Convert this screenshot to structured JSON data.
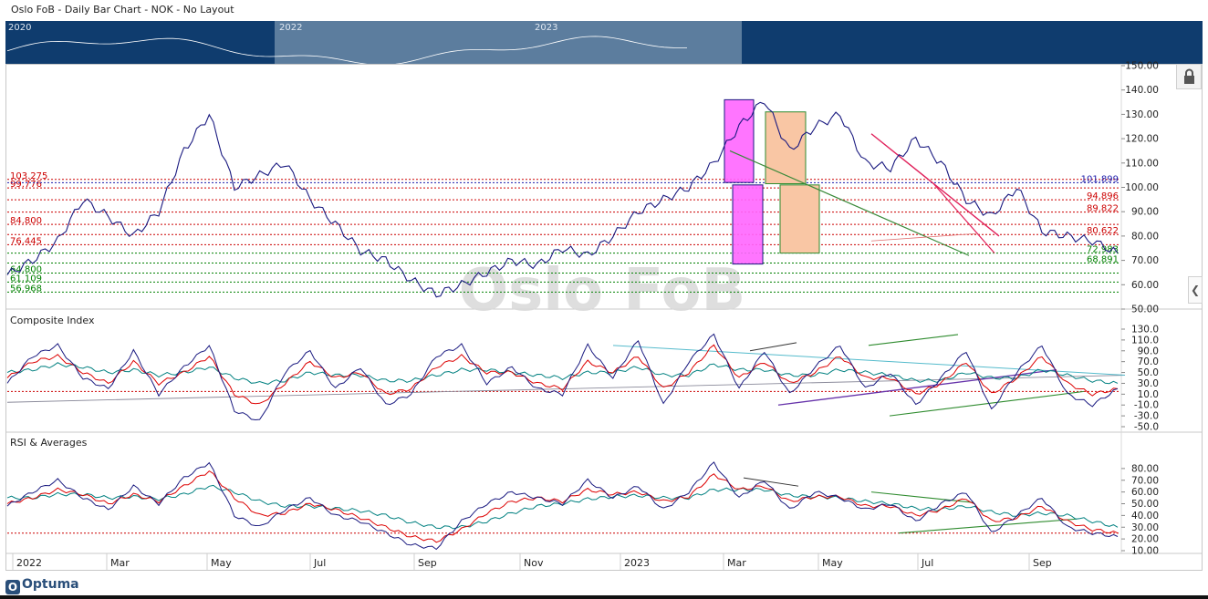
{
  "header": {
    "title": "Oslo FoB - Daily Bar Chart - NOK - No Layout"
  },
  "navigator": {
    "years": [
      "2020",
      "2022",
      "2023"
    ]
  },
  "watermark": "Oslo FoB",
  "brand": "Optuma",
  "icons": {
    "lock": "lock-icon",
    "collapse": "chevron-left-icon"
  },
  "chart_data": [
    {
      "type": "line",
      "panel": "price",
      "title": "",
      "x_labels": [
        "2022",
        "Mar",
        "May",
        "Jul",
        "Sep",
        "Nov",
        "2023",
        "Mar",
        "May",
        "Jul",
        "Sep"
      ],
      "ylim": [
        50,
        150
      ],
      "y_ticks": [
        "150.00",
        "140.00",
        "130.00",
        "120.00",
        "110.00",
        "100.00",
        "90.00",
        "80.00",
        "70.00",
        "60.00",
        "50.00"
      ],
      "series": [
        {
          "values": [
            64,
            70,
            78,
            95,
            88,
            80,
            90,
            115,
            130,
            100,
            105,
            110,
            95,
            85,
            74,
            70,
            62,
            56,
            60,
            65,
            70,
            68,
            75,
            72,
            80,
            90,
            95,
            100,
            110,
            125,
            136,
            115,
            125,
            130,
            110,
            108,
            120,
            110,
            95,
            88,
            100,
            82,
            80,
            78,
            73
          ]
        }
      ],
      "levels": [
        {
          "value": 103.275,
          "label": "103.275",
          "color": "#cc0000",
          "side": "left"
        },
        {
          "value": 99.776,
          "label": "99.776",
          "color": "#cc0000",
          "side": "left"
        },
        {
          "value": 84.8,
          "label": "84.800",
          "color": "#cc0000",
          "side": "left"
        },
        {
          "value": 76.445,
          "label": "76.445",
          "color": "#cc0000",
          "side": "left"
        },
        {
          "value": 64.8,
          "label": "64.800",
          "color": "#008000",
          "side": "left"
        },
        {
          "value": 61.109,
          "label": "61.109",
          "color": "#008000",
          "side": "left"
        },
        {
          "value": 56.968,
          "label": "56.968",
          "color": "#008000",
          "side": "left"
        },
        {
          "value": 101.899,
          "label": "101.899",
          "color": "#1a1aaa",
          "side": "right"
        },
        {
          "value": 94.896,
          "label": "94.896",
          "color": "#cc0000",
          "side": "right"
        },
        {
          "value": 89.822,
          "label": "89.822",
          "color": "#cc0000",
          "side": "right"
        },
        {
          "value": 80.622,
          "label": "80.622",
          "color": "#cc0000",
          "side": "right"
        },
        {
          "value": 72.983,
          "label": "72.983",
          "color": "#008000",
          "side": "right"
        },
        {
          "value": 68.891,
          "label": "68.891",
          "color": "#008000",
          "side": "right"
        }
      ],
      "colors": {
        "price": "#1a1a80",
        "magenta_box": "#ff66ff",
        "peach_box": "#f9c6a4"
      }
    },
    {
      "type": "line",
      "panel": "composite",
      "title": "Composite Index",
      "ylim": [
        -50,
        130
      ],
      "y_ticks": [
        "130.0",
        "110.0",
        "90.0",
        "70.0",
        "50.0",
        "30.0",
        "10.0",
        "-10.0",
        "-30.0",
        "-50.0"
      ],
      "series": [
        {
          "color": "#1a1a80",
          "values": [
            30,
            80,
            100,
            40,
            20,
            90,
            10,
            60,
            100,
            -20,
            -40,
            50,
            90,
            20,
            60,
            -10,
            10,
            80,
            100,
            30,
            60,
            20,
            10,
            100,
            40,
            110,
            -10,
            70,
            120,
            20,
            90,
            10,
            60,
            100,
            20,
            50,
            -10,
            40,
            90,
            -20,
            50,
            100,
            10,
            -10,
            20
          ]
        },
        {
          "color": "#dd0000",
          "values": [
            40,
            70,
            80,
            50,
            30,
            70,
            30,
            50,
            80,
            10,
            -10,
            30,
            70,
            40,
            50,
            10,
            20,
            60,
            80,
            50,
            50,
            30,
            20,
            70,
            50,
            80,
            20,
            50,
            100,
            40,
            70,
            30,
            50,
            80,
            40,
            40,
            10,
            30,
            70,
            10,
            40,
            80,
            30,
            10,
            20
          ]
        },
        {
          "color": "#008080",
          "values": [
            50,
            55,
            65,
            60,
            50,
            55,
            45,
            50,
            60,
            40,
            30,
            35,
            50,
            45,
            45,
            35,
            35,
            45,
            55,
            55,
            50,
            45,
            40,
            50,
            50,
            60,
            45,
            45,
            65,
            55,
            55,
            45,
            45,
            55,
            50,
            45,
            35,
            35,
            50,
            40,
            40,
            55,
            45,
            35,
            30
          ]
        }
      ]
    },
    {
      "type": "line",
      "panel": "rsi",
      "title": "RSI & Averages",
      "ylim": [
        10,
        90
      ],
      "y_ticks": [
        "80.00",
        "70.00",
        "60.00",
        "50.00",
        "40.00",
        "30.00",
        "20.00",
        "10.00"
      ],
      "series": [
        {
          "color": "#1a1a80",
          "values": [
            48,
            60,
            70,
            55,
            45,
            65,
            50,
            72,
            85,
            40,
            30,
            45,
            55,
            40,
            35,
            25,
            15,
            12,
            35,
            50,
            60,
            55,
            50,
            70,
            55,
            65,
            45,
            60,
            85,
            55,
            70,
            45,
            60,
            55,
            45,
            50,
            35,
            50,
            60,
            25,
            40,
            55,
            30,
            25,
            22
          ]
        },
        {
          "color": "#dd0000",
          "values": [
            50,
            55,
            62,
            58,
            50,
            58,
            52,
            65,
            78,
            55,
            40,
            42,
            50,
            45,
            38,
            30,
            22,
            18,
            28,
            42,
            52,
            55,
            52,
            62,
            58,
            60,
            52,
            56,
            75,
            62,
            65,
            52,
            56,
            56,
            48,
            48,
            40,
            45,
            55,
            35,
            38,
            48,
            35,
            28,
            25
          ]
        },
        {
          "color": "#008080",
          "values": [
            55,
            55,
            58,
            58,
            55,
            56,
            54,
            58,
            65,
            60,
            52,
            48,
            48,
            46,
            44,
            40,
            34,
            30,
            30,
            35,
            42,
            48,
            50,
            54,
            56,
            57,
            55,
            55,
            62,
            62,
            62,
            57,
            56,
            55,
            52,
            50,
            46,
            45,
            48,
            43,
            40,
            42,
            40,
            35,
            30
          ]
        }
      ]
    }
  ]
}
